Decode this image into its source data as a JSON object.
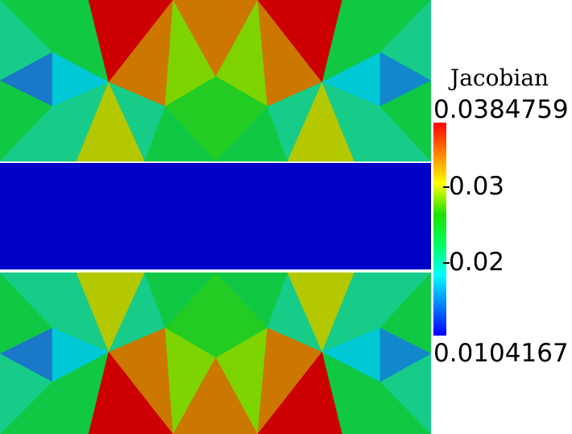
{
  "scalar_bar": {
    "title": "Jacobian",
    "max_label": "0.0384759",
    "min_label": "0.0104167",
    "min_value": 0.0104167,
    "max_value": 0.0384759,
    "ticks": [
      {
        "label": "0.03",
        "value": 0.03
      },
      {
        "label": "0.02",
        "value": 0.02
      }
    ],
    "colormap": [
      "#0000ff",
      "#0080ff",
      "#00ffff",
      "#00ff60",
      "#20e000",
      "#ffff00",
      "#ff8000",
      "#ff0000"
    ]
  },
  "mesh": {
    "band_color": "#0000c8",
    "palette": {
      "red": "#cc0000",
      "orange": "#cc7700",
      "lightorange": "#d88a1a",
      "yellow": "#b4c800",
      "lime": "#7ed400",
      "green": "#22cc22",
      "midgreen": "#11c844",
      "teal": "#17cc88",
      "cyan": "#00c8d4",
      "blue": "#1188cc",
      "dblue": "#1a78c8"
    }
  }
}
